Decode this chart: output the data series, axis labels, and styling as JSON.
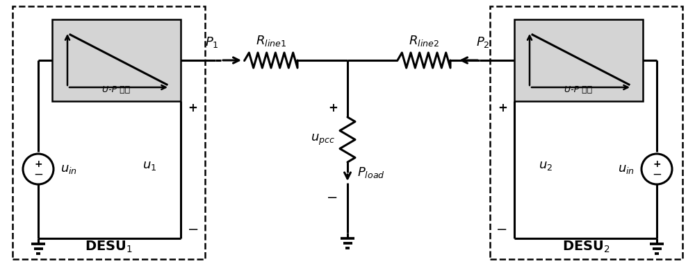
{
  "bg_color": "#ffffff",
  "fig_width": 10.0,
  "fig_height": 3.94,
  "dpi": 100,
  "lw": 2.0,
  "lw_thick": 2.2,
  "box_fill": "#d4d4d4",
  "fs_main": 13,
  "fs_droop": 9,
  "fs_desu": 14,
  "label_droop": "U-P 下垂",
  "label_desu1": "DESU$_1$",
  "label_desu2": "DESU$_2$"
}
